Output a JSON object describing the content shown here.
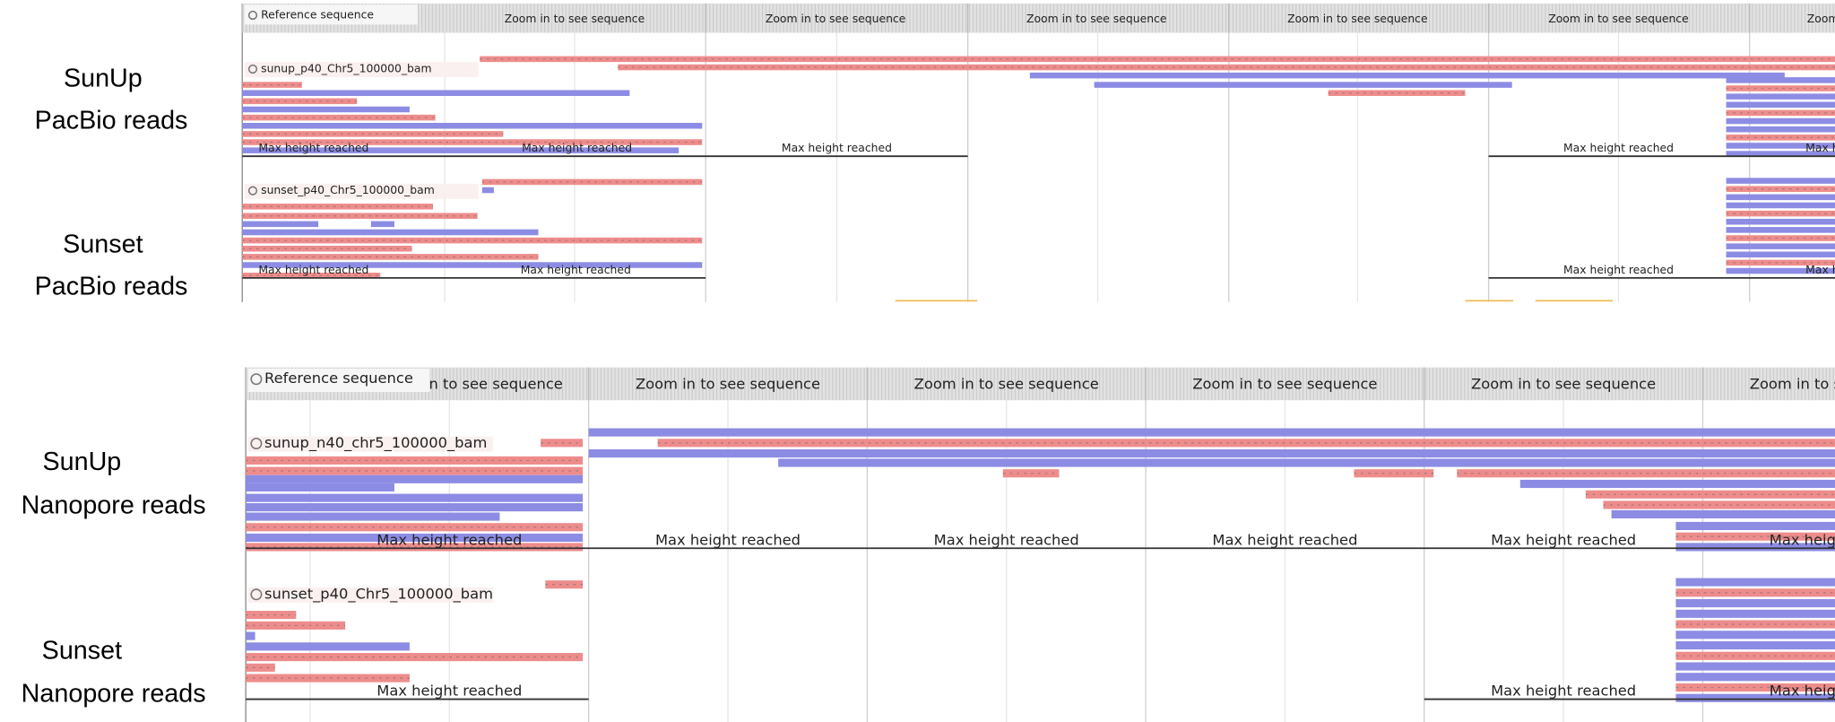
{
  "panels": [
    {
      "reference": "Reference sequence",
      "zoom_labels": [
        "Zoom in to see sequence",
        "Zoom in to see sequence",
        "Zoom in to see sequence",
        "Zoom in to see sequence",
        "Zoom in to see sequence",
        "Zoom in to see sequence"
      ],
      "tracks": [
        {
          "side_label": [
            "SunUp",
            "PacBio reads"
          ],
          "track_label": "sunup_p40_Chr5_100000_bam",
          "max_height_labels": [
            "Max height reached",
            "Max height reached",
            "Max height reached",
            "Max height reached",
            "Max height reached"
          ]
        },
        {
          "side_label": [
            "Sunset",
            "PacBio reads"
          ],
          "track_label": "sunset_p40_Chr5_100000_bam",
          "max_height_labels": [
            "Max height reached",
            "Max height reached",
            "Max height reached",
            "Max height reached"
          ]
        }
      ]
    },
    {
      "reference": "Reference sequence",
      "zoom_labels": [
        "Zoom in to see sequence",
        "Zoom in to see sequence",
        "Zoom in to see sequence",
        "Zoom in to see sequence",
        "Zoom in to see sequence",
        "Zoom in to see sequence"
      ],
      "tracks": [
        {
          "side_label": [
            "SunUp",
            "Nanopore reads"
          ],
          "track_label": "sunup_n40_chr5_100000_bam",
          "max_height_labels": [
            "Max height reached",
            "Max height reached",
            "Max height reached",
            "Max height reached",
            "Max height reached",
            "Max height reached"
          ]
        },
        {
          "side_label": [
            "Sunset",
            "Nanopore reads"
          ],
          "track_label": "sunset_p40_Chr5_100000_bam",
          "max_height_labels": [
            "Max height reached",
            "Max height reached",
            "Max height reached"
          ]
        }
      ]
    }
  ]
}
